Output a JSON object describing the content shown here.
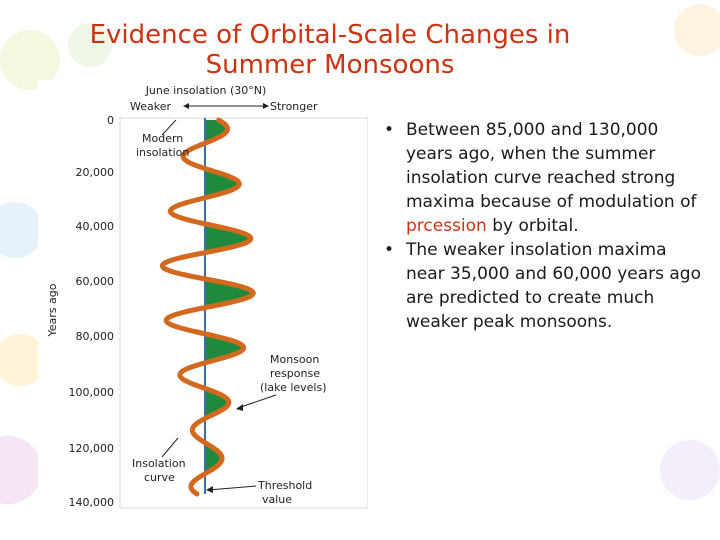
{
  "slide": {
    "title_line1": "Evidence of Orbital-Scale Changes in",
    "title_line2": "Summer Monsoons",
    "bullets": [
      {
        "parts": [
          {
            "text": "Between 85,000 and 130,000 years ago, when the summer insolation curve reached strong maxima because of modulation of ",
            "highlight": false
          },
          {
            "text": "prcession",
            "highlight": true
          },
          {
            "text": " by orbital.",
            "highlight": false
          }
        ]
      },
      {
        "parts": [
          {
            "text": "The weaker insolation maxima near 35,000 and 60,000 years ago are predicted to create much weaker peak monsoons.",
            "highlight": false
          }
        ]
      }
    ]
  },
  "figure": {
    "top_label": "June insolation (30°N)",
    "weaker_label": "Weaker",
    "stronger_label": "Stronger",
    "y_axis_label": "Years ago",
    "y_ticks": [
      "0",
      "20,000",
      "40,000",
      "60,000",
      "80,000",
      "100,000",
      "120,000",
      "140,000"
    ],
    "annotations": {
      "modern": [
        "Modern",
        "insolation"
      ],
      "monsoon": [
        "Monsoon",
        "response",
        "(lake levels)"
      ],
      "insolation": [
        "Insolation",
        "curve"
      ],
      "threshold": [
        "Threshold",
        "value"
      ]
    },
    "colors": {
      "curve": "#d2691e",
      "fill": "#1e8a3c",
      "threshold": "#3a6ea5",
      "title": "#cc3311"
    }
  }
}
